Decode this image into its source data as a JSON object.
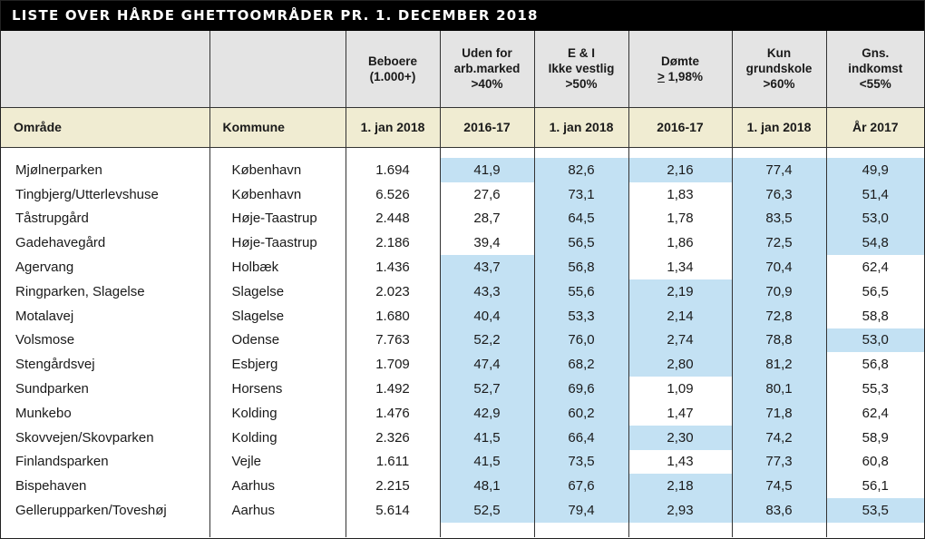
{
  "title": "LISTE OVER HÅRDE GHETTOOMRÅDER PR. 1. DECEMBER 2018",
  "columns": [
    {
      "line1": "",
      "line2": "",
      "line3": ""
    },
    {
      "line1": "",
      "line2": "",
      "line3": ""
    },
    {
      "line1": "Beboere",
      "line2": "(1.000+)",
      "line3": ""
    },
    {
      "line1": "Uden for",
      "line2": "arb.marked",
      "line3": ">40%"
    },
    {
      "line1": "E & I",
      "line2": "Ikke vestlig",
      "line3": ">50%"
    },
    {
      "line1": "Dømte",
      "line2_sym": ">",
      "line2": " 1,98%",
      "line3": ""
    },
    {
      "line1": "Kun",
      "line2": "grundskole",
      "line3": ">60%"
    },
    {
      "line1": "Gns.",
      "line2": "indkomst",
      "line3": "<55%"
    }
  ],
  "subheader": [
    "Område",
    "Kommune",
    "1. jan 2018",
    "2016-17",
    "1. jan 2018",
    "2016-17",
    "1. jan 2018",
    "År 2017"
  ],
  "highlight_color": "#c3e1f3",
  "rows": [
    {
      "cells": [
        "Mjølnerparken",
        "København",
        "1.694",
        "41,9",
        "82,6",
        "2,16",
        "77,4",
        "49,9"
      ],
      "hl": [
        3,
        4,
        5,
        6,
        7
      ]
    },
    {
      "cells": [
        "Tingbjerg/Utterlevshuse",
        "København",
        "6.526",
        "27,6",
        "73,1",
        "1,83",
        "76,3",
        "51,4"
      ],
      "hl": [
        4,
        6,
        7
      ]
    },
    {
      "cells": [
        "Tåstrupgård",
        "Høje-Taastrup",
        "2.448",
        "28,7",
        "64,5",
        "1,78",
        "83,5",
        "53,0"
      ],
      "hl": [
        4,
        6,
        7
      ]
    },
    {
      "cells": [
        "Gadehavegård",
        "Høje-Taastrup",
        "2.186",
        "39,4",
        "56,5",
        "1,86",
        "72,5",
        "54,8"
      ],
      "hl": [
        4,
        6,
        7
      ]
    },
    {
      "cells": [
        "Agervang",
        "Holbæk",
        "1.436",
        "43,7",
        "56,8",
        "1,34",
        "70,4",
        "62,4"
      ],
      "hl": [
        3,
        4,
        6
      ]
    },
    {
      "cells": [
        "Ringparken, Slagelse",
        "Slagelse",
        "2.023",
        "43,3",
        "55,6",
        "2,19",
        "70,9",
        "56,5"
      ],
      "hl": [
        3,
        4,
        5,
        6
      ]
    },
    {
      "cells": [
        "Motalavej",
        "Slagelse",
        "1.680",
        "40,4",
        "53,3",
        "2,14",
        "72,8",
        "58,8"
      ],
      "hl": [
        3,
        4,
        5,
        6
      ]
    },
    {
      "cells": [
        "Volsmose",
        "Odense",
        "7.763",
        "52,2",
        "76,0",
        "2,74",
        "78,8",
        "53,0"
      ],
      "hl": [
        3,
        4,
        5,
        6,
        7
      ]
    },
    {
      "cells": [
        "Stengårdsvej",
        "Esbjerg",
        "1.709",
        "47,4",
        "68,2",
        "2,80",
        "81,2",
        "56,8"
      ],
      "hl": [
        3,
        4,
        5,
        6
      ]
    },
    {
      "cells": [
        "Sundparken",
        "Horsens",
        "1.492",
        "52,7",
        "69,6",
        "1,09",
        "80,1",
        "55,3"
      ],
      "hl": [
        3,
        4,
        6
      ]
    },
    {
      "cells": [
        "Munkebo",
        "Kolding",
        "1.476",
        "42,9",
        "60,2",
        "1,47",
        "71,8",
        "62,4"
      ],
      "hl": [
        3,
        4,
        6
      ]
    },
    {
      "cells": [
        "Skovvejen/Skovparken",
        "Kolding",
        "2.326",
        "41,5",
        "66,4",
        "2,30",
        "74,2",
        "58,9"
      ],
      "hl": [
        3,
        4,
        5,
        6
      ]
    },
    {
      "cells": [
        "Finlandsparken",
        "Vejle",
        "1.611",
        "41,5",
        "73,5",
        "1,43",
        "77,3",
        "60,8"
      ],
      "hl": [
        3,
        4,
        6
      ]
    },
    {
      "cells": [
        "Bispehaven",
        "Aarhus",
        "2.215",
        "48,1",
        "67,6",
        "2,18",
        "74,5",
        "56,1"
      ],
      "hl": [
        3,
        4,
        5,
        6
      ]
    },
    {
      "cells": [
        "Gellerupparken/Toveshøj",
        "Aarhus",
        "5.614",
        "52,5",
        "79,4",
        "2,93",
        "83,6",
        "53,5"
      ],
      "hl": [
        3,
        4,
        5,
        6,
        7
      ]
    }
  ]
}
